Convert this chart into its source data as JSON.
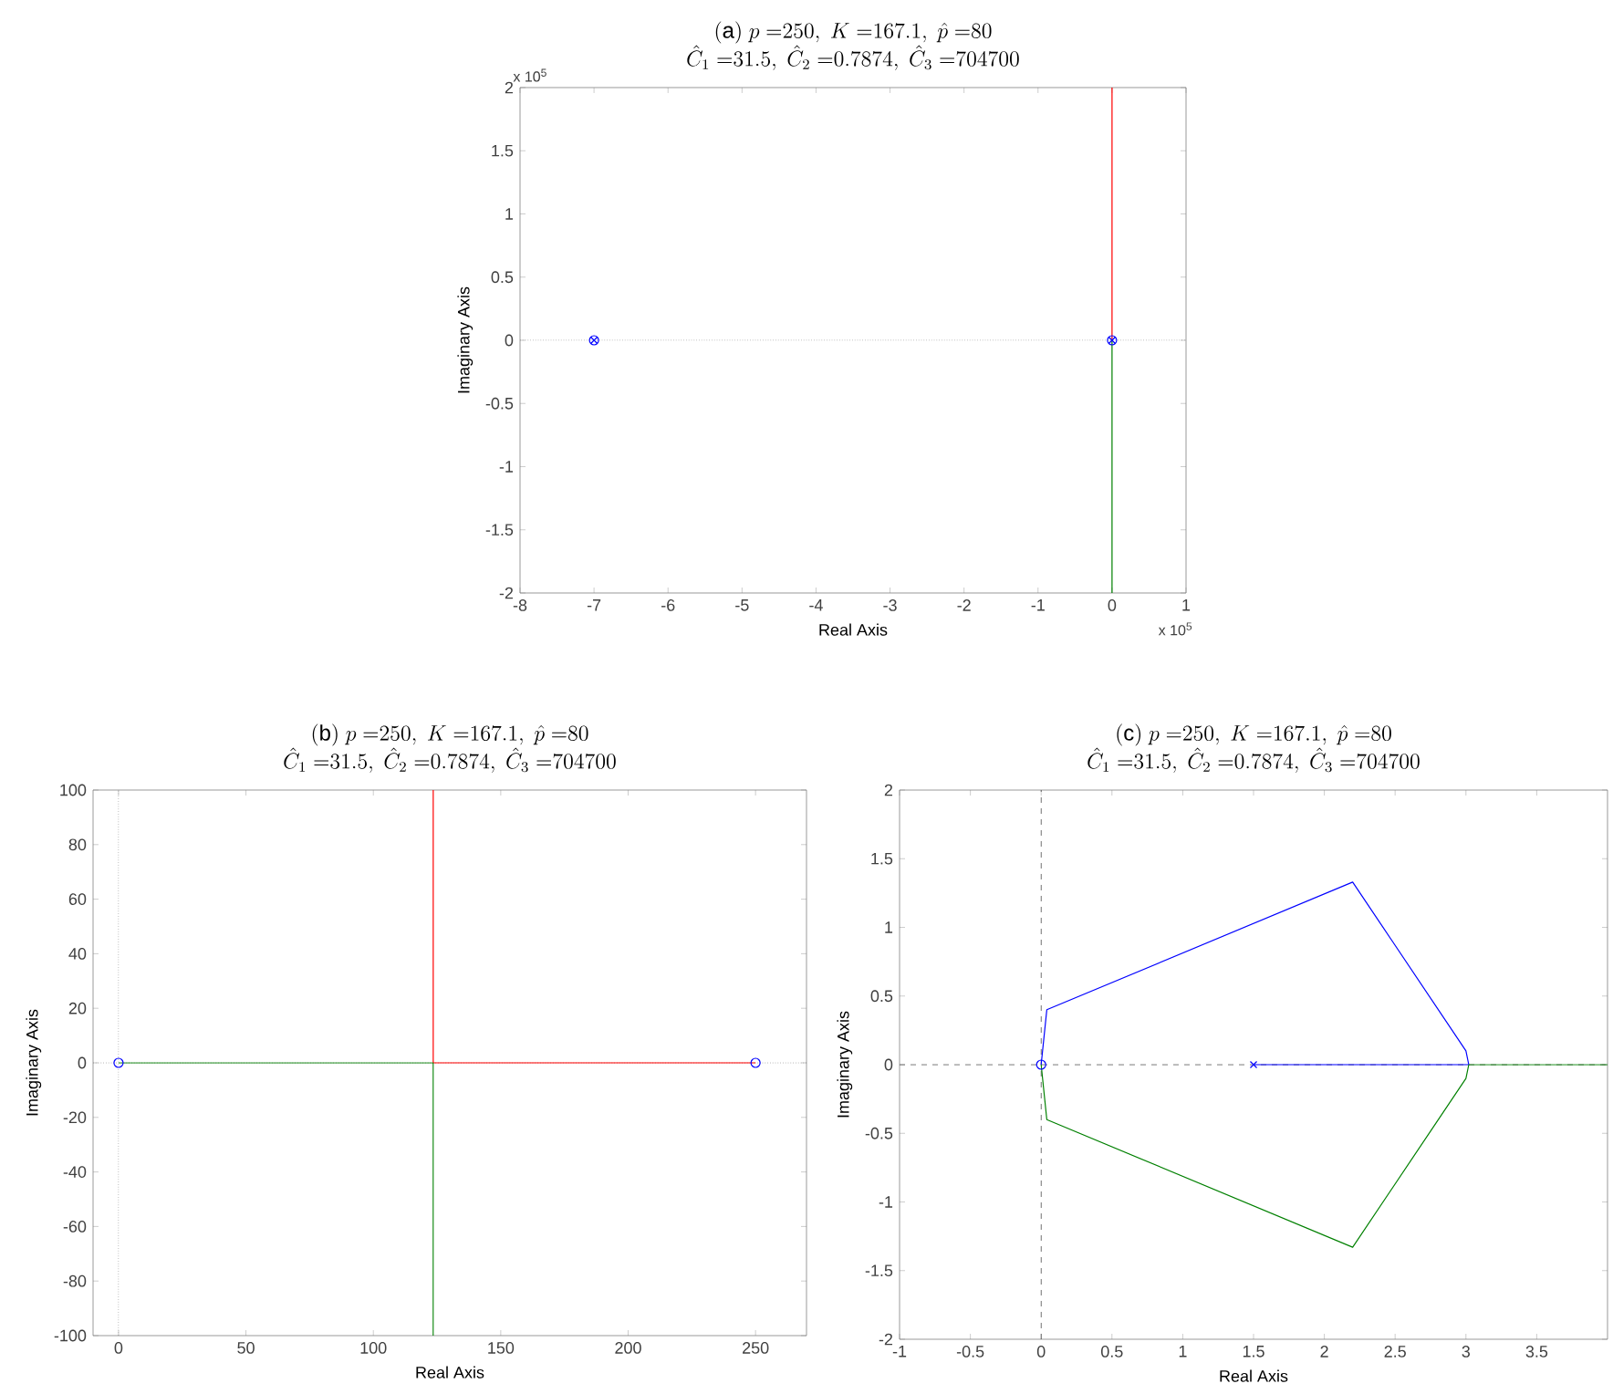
{
  "chart_data": [
    {
      "type": "line",
      "title": "\\mathrm{(a)}\\ p\\ {=}250,\\ K\\ {=}167.1,\\ \\hat{p}\\ {=}80",
      "subtitle": "\\hat{C}_1\\ {=}31.5,\\ \\hat{C}_2\\ {=}0.7874,\\ \\hat{C}_3\\ {=}704700",
      "xlabel": "Real Axis",
      "ylabel": "Imaginary Axis",
      "xlim": [
        -8,
        1
      ],
      "ylim": [
        -2,
        2
      ],
      "xticks": [
        -8,
        -7,
        -6,
        -5,
        -4,
        -3,
        -2,
        -1,
        0,
        1
      ],
      "yticks": [
        -2,
        -1.5,
        -1,
        -0.5,
        0,
        0.5,
        1,
        1.5,
        2
      ],
      "annotations": [
        "x 10$^{5}$",
        "x 10$^{5}$"
      ],
      "ref_lines": [
        {
          "axis": "y",
          "value": 0,
          "color": "#808080",
          "line_style": "dotted"
        }
      ],
      "series": [
        {
          "color": "#ff0000",
          "x": [
            0,
            0
          ],
          "values": [
            0,
            2
          ]
        },
        {
          "color": "#008000",
          "x": [
            0,
            0
          ],
          "values": [
            0,
            -2
          ]
        },
        {
          "type": "scatter",
          "marker": "cross",
          "color": "#0000ff",
          "x": [
            -7,
            0
          ],
          "values": [
            0,
            0
          ]
        },
        {
          "type": "scatter",
          "marker": "circle",
          "color": "#0000ff",
          "x": [
            -7,
            0
          ],
          "values": [
            0,
            0
          ]
        }
      ]
    },
    {
      "type": "line",
      "title": "\\mathrm{(b)}\\ p\\ {=}250,\\ K\\ {=}167.1,\\ \\hat{p}\\ {=}80",
      "subtitle": "\\hat{C}_1\\ {=}31.5,\\ \\hat{C}_2\\ {=}0.7874,\\ \\hat{C}_3\\ {=}704700",
      "xlabel": "Real Axis",
      "ylabel": "Imaginary Axis",
      "xlim": [
        -10,
        270
      ],
      "ylim": [
        -100,
        100
      ],
      "xticks": [
        0,
        50,
        100,
        150,
        200,
        250
      ],
      "yticks": [
        -100,
        -80,
        -60,
        -40,
        -20,
        0,
        20,
        40,
        60,
        80,
        100
      ],
      "ref_lines": [
        {
          "axis": "x",
          "value": 0,
          "color": "#808080",
          "line_style": "dotted"
        },
        {
          "axis": "y",
          "value": 0,
          "color": "#808080",
          "line_style": "dotted"
        }
      ],
      "series": [
        {
          "color": "#ff0000",
          "x": [
            250,
            123.5,
            123.5
          ],
          "values": [
            0,
            0,
            100
          ]
        },
        {
          "color": "#008000",
          "x": [
            0,
            123.5,
            123.5
          ],
          "values": [
            0,
            0,
            -100
          ]
        },
        {
          "type": "scatter",
          "marker": "circle",
          "color": "#0000ff",
          "x": [
            0,
            250
          ],
          "values": [
            0,
            0
          ]
        }
      ]
    },
    {
      "type": "line",
      "title": "\\mathrm{(c)}\\ p\\ {=}250,\\ K\\ {=}167.1,\\ \\hat{p}\\ {=}80",
      "subtitle": "\\hat{C}_1\\ {=}31.5,\\ \\hat{C}_2\\ {=}0.7874,\\ \\hat{C}_3\\ {=}704700",
      "xlabel": "Real Axis",
      "ylabel": "Imaginary Axis",
      "xlim": [
        -1,
        4
      ],
      "ylim": [
        -2,
        2
      ],
      "xticks": [
        -1,
        -0.5,
        0,
        0.5,
        1,
        1.5,
        2,
        2.5,
        3,
        3.5
      ],
      "yticks": [
        -2,
        -1.5,
        -1,
        -0.5,
        0,
        0.5,
        1,
        1.5,
        2
      ],
      "ref_lines": [
        {
          "axis": "x",
          "value": 0,
          "color": "#404040",
          "line_style": "dashed"
        },
        {
          "axis": "y",
          "value": 0,
          "color": "#404040",
          "line_style": "dashed"
        }
      ],
      "series": [
        {
          "color": "#0000ff",
          "x": [
            0,
            0.04,
            2.2,
            3.0,
            3.02
          ],
          "values": [
            0,
            0.4,
            1.33,
            0.1,
            0
          ]
        },
        {
          "color": "#0000ff",
          "x": [
            1.5,
            3.02
          ],
          "values": [
            0,
            0
          ]
        },
        {
          "color": "#008000",
          "x": [
            0,
            0.04,
            2.2,
            3.0,
            3.02,
            4
          ],
          "values": [
            0,
            -0.4,
            -1.33,
            -0.1,
            0,
            0
          ]
        },
        {
          "type": "scatter",
          "marker": "circle",
          "color": "#0000ff",
          "x": [
            0
          ],
          "values": [
            0
          ]
        },
        {
          "type": "scatter",
          "marker": "cross",
          "color": "#0000ff",
          "x": [
            1.5
          ],
          "values": [
            0
          ]
        }
      ]
    }
  ]
}
